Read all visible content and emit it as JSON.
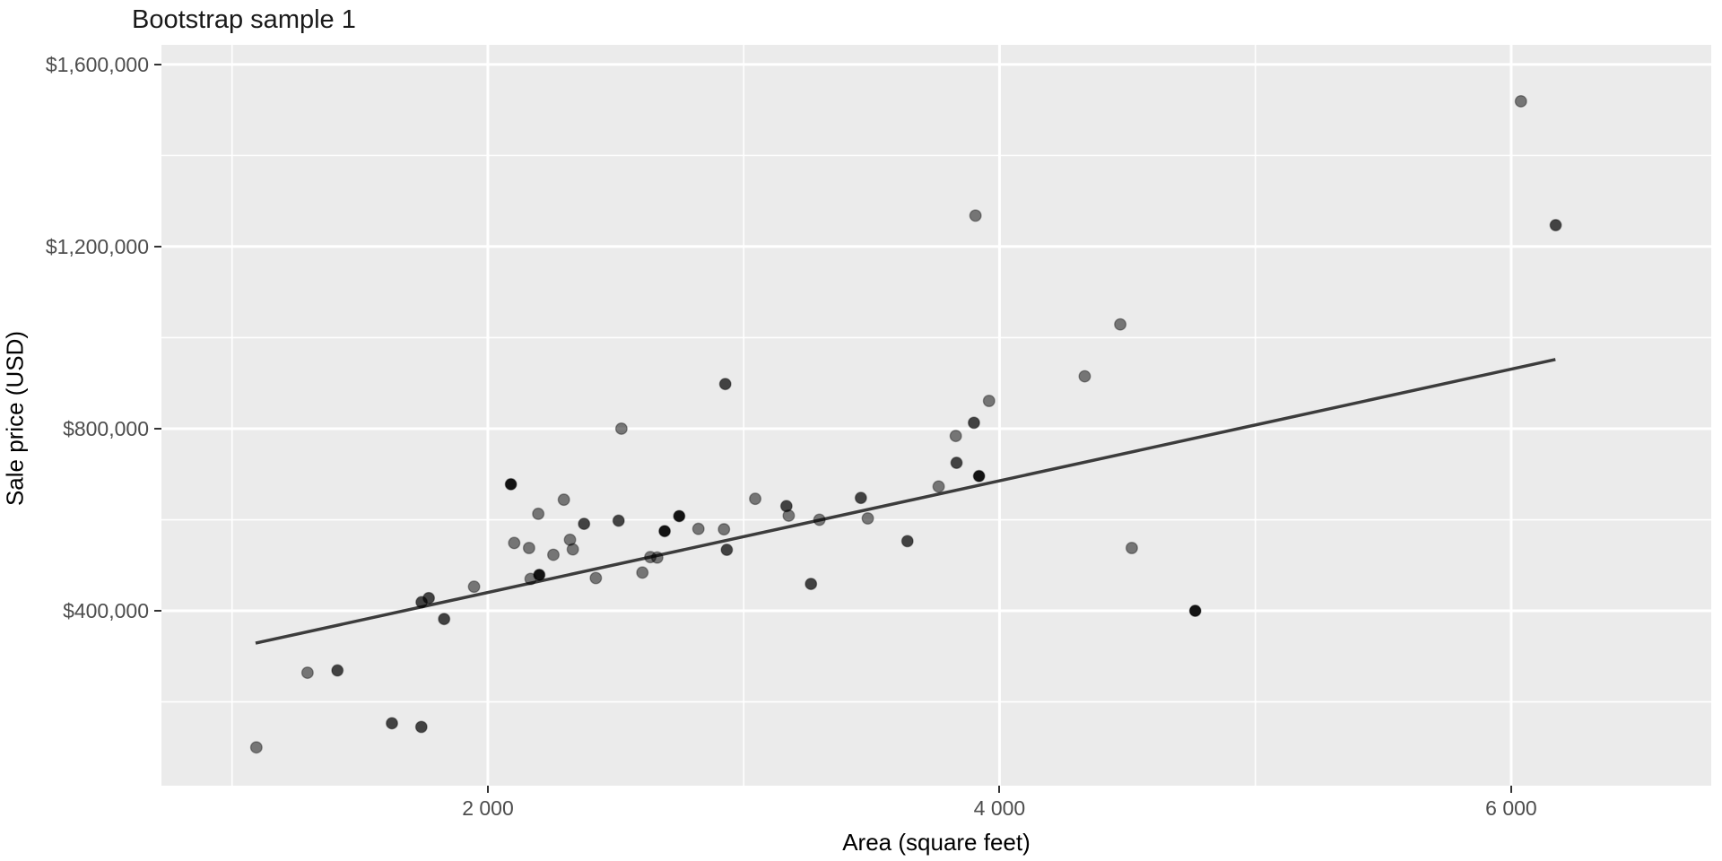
{
  "title": "Bootstrap sample 1",
  "x_axis": {
    "label": "Area (square feet)",
    "tick_labels": [
      "2 000",
      "4 000",
      "6 000"
    ],
    "tick_values": [
      2000,
      4000,
      6000
    ],
    "minor_values": [
      1000,
      3000,
      5000
    ],
    "domain": [
      724,
      6782
    ]
  },
  "y_axis": {
    "label": "Sale price (USD)",
    "tick_labels": [
      "$400,000",
      "$800,000",
      "$1,200,000",
      "$1,600,000"
    ],
    "tick_values": [
      400000,
      800000,
      1200000,
      1600000
    ],
    "minor_values": [
      200000,
      600000,
      1000000,
      1400000
    ],
    "domain": [
      16000,
      1643000
    ]
  },
  "chart_data": {
    "type": "scatter",
    "title": "Bootstrap sample 1",
    "xlabel": "Area (square feet)",
    "ylabel": "Sale price (USD)",
    "xlim": [
      724,
      6782
    ],
    "ylim": [
      16000,
      1643000
    ],
    "grid": "on",
    "legend": "none",
    "colors": {
      "panel_bg": "#ebebeb",
      "grid": "#ffffff",
      "point": "#000000",
      "trend_line": "#3c3c3c"
    },
    "trend_line": {
      "x1": 1092,
      "y1": 329000,
      "x2": 6173,
      "y2": 952000
    },
    "series": [
      {
        "name": "houses",
        "points": [
          {
            "area": 1095,
            "price": 100000,
            "alpha": 0.5
          },
          {
            "area": 1295,
            "price": 264000,
            "alpha": 0.5
          },
          {
            "area": 1412,
            "price": 269000,
            "alpha": 0.72
          },
          {
            "area": 1625,
            "price": 153000,
            "alpha": 0.72
          },
          {
            "area": 1740,
            "price": 145000,
            "alpha": 0.72
          },
          {
            "area": 1741,
            "price": 419000,
            "alpha": 0.72
          },
          {
            "area": 1769,
            "price": 428000,
            "alpha": 0.72
          },
          {
            "area": 1829,
            "price": 382000,
            "alpha": 0.72
          },
          {
            "area": 1946,
            "price": 453000,
            "alpha": 0.5
          },
          {
            "area": 2090,
            "price": 678000,
            "alpha": 0.92
          },
          {
            "area": 2103,
            "price": 549000,
            "alpha": 0.5
          },
          {
            "area": 2161,
            "price": 538000,
            "alpha": 0.5
          },
          {
            "area": 2167,
            "price": 470000,
            "alpha": 0.5
          },
          {
            "area": 2197,
            "price": 613000,
            "alpha": 0.5
          },
          {
            "area": 2201,
            "price": 479000,
            "alpha": 0.92
          },
          {
            "area": 2256,
            "price": 523000,
            "alpha": 0.5
          },
          {
            "area": 2297,
            "price": 644000,
            "alpha": 0.5
          },
          {
            "area": 2321,
            "price": 556000,
            "alpha": 0.5
          },
          {
            "area": 2332,
            "price": 535000,
            "alpha": 0.5
          },
          {
            "area": 2376,
            "price": 591000,
            "alpha": 0.72
          },
          {
            "area": 2422,
            "price": 472000,
            "alpha": 0.5
          },
          {
            "area": 2511,
            "price": 598000,
            "alpha": 0.72
          },
          {
            "area": 2522,
            "price": 800000,
            "alpha": 0.5
          },
          {
            "area": 2604,
            "price": 484000,
            "alpha": 0.5
          },
          {
            "area": 2635,
            "price": 518000,
            "alpha": 0.5
          },
          {
            "area": 2662,
            "price": 517000,
            "alpha": 0.5
          },
          {
            "area": 2691,
            "price": 575000,
            "alpha": 0.92
          },
          {
            "area": 2748,
            "price": 608000,
            "alpha": 0.92
          },
          {
            "area": 2823,
            "price": 580000,
            "alpha": 0.5
          },
          {
            "area": 2923,
            "price": 579000,
            "alpha": 0.5
          },
          {
            "area": 2928,
            "price": 898000,
            "alpha": 0.72
          },
          {
            "area": 2934,
            "price": 534000,
            "alpha": 0.72
          },
          {
            "area": 3045,
            "price": 646000,
            "alpha": 0.5
          },
          {
            "area": 3167,
            "price": 630000,
            "alpha": 0.72
          },
          {
            "area": 3176,
            "price": 609000,
            "alpha": 0.5
          },
          {
            "area": 3263,
            "price": 459000,
            "alpha": 0.72
          },
          {
            "area": 3296,
            "price": 600000,
            "alpha": 0.5
          },
          {
            "area": 3458,
            "price": 648000,
            "alpha": 0.72
          },
          {
            "area": 3485,
            "price": 603000,
            "alpha": 0.5
          },
          {
            "area": 3640,
            "price": 553000,
            "alpha": 0.72
          },
          {
            "area": 3762,
            "price": 673000,
            "alpha": 0.5
          },
          {
            "area": 3829,
            "price": 784000,
            "alpha": 0.5
          },
          {
            "area": 3832,
            "price": 725000,
            "alpha": 0.72
          },
          {
            "area": 3900,
            "price": 813000,
            "alpha": 0.72
          },
          {
            "area": 3906,
            "price": 1268000,
            "alpha": 0.5
          },
          {
            "area": 3920,
            "price": 696000,
            "alpha": 0.92
          },
          {
            "area": 3959,
            "price": 861000,
            "alpha": 0.5
          },
          {
            "area": 4333,
            "price": 915000,
            "alpha": 0.5
          },
          {
            "area": 4472,
            "price": 1029000,
            "alpha": 0.5
          },
          {
            "area": 4517,
            "price": 538000,
            "alpha": 0.5
          },
          {
            "area": 4765,
            "price": 400000,
            "alpha": 0.92
          },
          {
            "area": 6038,
            "price": 1519000,
            "alpha": 0.5
          },
          {
            "area": 6174,
            "price": 1247000,
            "alpha": 0.72
          }
        ]
      }
    ]
  }
}
